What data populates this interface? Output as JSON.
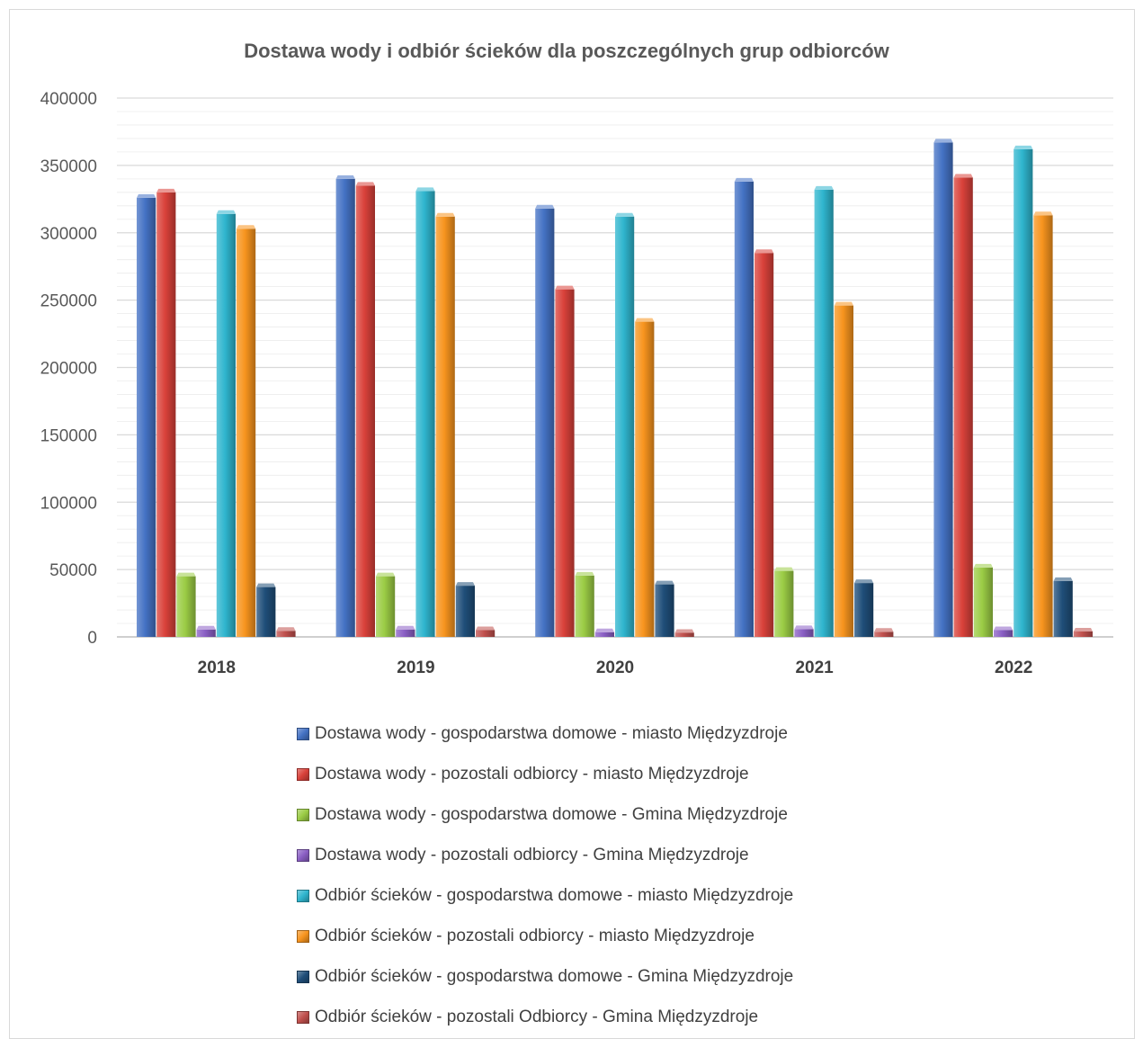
{
  "chart_data": {
    "type": "bar",
    "title": "Dostawa wody i odbiór ścieków dla poszczególnych grup odbiorców",
    "xlabel": "",
    "ylabel": "",
    "ylim": [
      0,
      400000
    ],
    "yticks": [
      "0",
      "50000",
      "100000",
      "150000",
      "200000",
      "250000",
      "300000",
      "350000",
      "400000"
    ],
    "categories": [
      "2018",
      "2019",
      "2020",
      "2021",
      "2022"
    ],
    "grid": true,
    "legend_position": "bottom",
    "series": [
      {
        "name": "Dostawa wody - gospodarstwa domowe - miasto Międzyzdroje",
        "color": "#4472C4",
        "values": [
          326000,
          340000,
          318000,
          338000,
          367000
        ]
      },
      {
        "name": "Dostawa wody - pozostali odbiorcy  - miasto Międzyzdroje",
        "color": "#D9413A",
        "values": [
          330000,
          335000,
          258000,
          285000,
          341000
        ]
      },
      {
        "name": "Dostawa wody - gospodarstwa domowe - Gmina Międzyzdroje",
        "color": "#9BCC45",
        "values": [
          45000,
          45000,
          45500,
          49000,
          51500
        ]
      },
      {
        "name": "Dostawa wody - pozostali odbiorcy  - Gmina  Międzyzdroje",
        "color": "#8A5FC4",
        "values": [
          5500,
          5500,
          3500,
          5800,
          5000
        ]
      },
      {
        "name": "Odbiór ścieków - gospodarstwa domowe - miasto Międzyzdroje",
        "color": "#2FB5CE",
        "values": [
          314000,
          331000,
          312000,
          332000,
          362000
        ]
      },
      {
        "name": "Odbiór ścieków  - pozostali odbiorcy  - miasto Międzyzdroje",
        "color": "#F7941E",
        "values": [
          303000,
          312000,
          234000,
          246000,
          313000
        ]
      },
      {
        "name": "Odbiór ścieków - gospodarstwa domowe - Gmina Międzyzdroje",
        "color": "#1F4E79",
        "values": [
          37000,
          38000,
          39000,
          40000,
          41500
        ]
      },
      {
        "name": "Odbiór ścieków  - pozostali Odbiorcy  - Gmina  Międzyzdroje",
        "color": "#C0504D",
        "values": [
          4500,
          5000,
          3000,
          3800,
          4000
        ]
      }
    ]
  }
}
